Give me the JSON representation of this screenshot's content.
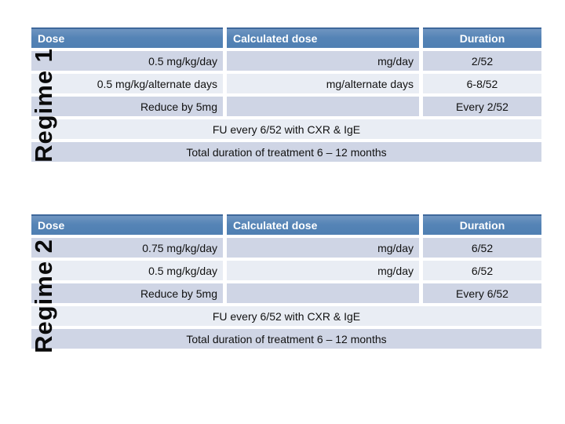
{
  "slide": {
    "background": "#ffffff"
  },
  "colors": {
    "header_bg": "#4f7fb2",
    "header_text": "#ffffff",
    "band_dark": "#cfd5e5",
    "band_light": "#e9edf4",
    "body_text": "#111111",
    "regime_label_text": "#0a0a0a"
  },
  "tables": [
    {
      "regime_label": "Regime 1",
      "headers": [
        "Dose",
        "Calculated dose",
        "Duration"
      ],
      "rows": [
        {
          "dose": "0.5 mg/kg/day",
          "calculated": "mg/day",
          "duration": "2/52"
        },
        {
          "dose": "0.5 mg/kg/alternate days",
          "calculated": "mg/alternate days",
          "duration": "6-8/52"
        },
        {
          "dose": "Reduce by 5mg",
          "calculated": "",
          "duration": "Every 2/52"
        }
      ],
      "merged_rows": [
        "FU every 6/52 with CXR & IgE",
        "Total duration of treatment 6 – 12 months"
      ]
    },
    {
      "regime_label": "Regime 2",
      "headers": [
        "Dose",
        "Calculated dose",
        "Duration"
      ],
      "rows": [
        {
          "dose": "0.75 mg/kg/day",
          "calculated": "mg/day",
          "duration": "6/52"
        },
        {
          "dose": "0.5 mg/kg/day",
          "calculated": "mg/day",
          "duration": "6/52"
        },
        {
          "dose": "Reduce by 5mg",
          "calculated": "",
          "duration": "Every 6/52"
        }
      ],
      "merged_rows": [
        "FU every 6/52 with CXR & IgE",
        "Total duration of treatment 6 – 12 months"
      ]
    }
  ]
}
